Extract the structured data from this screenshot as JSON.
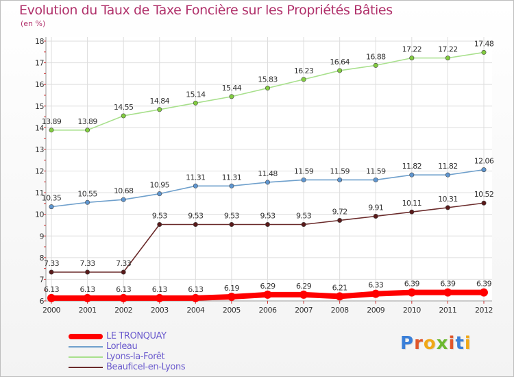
{
  "header": {
    "title": "Evolution du Taux de Taxe Foncière sur les Propriétés Bâties",
    "unit": "(en %)"
  },
  "logo": {
    "letters": [
      "P",
      "r",
      "o",
      "x",
      "i",
      "t",
      "i"
    ],
    "colors": [
      "#3a7fd8",
      "#e0562a",
      "#f0a818",
      "#6cb830",
      "#e0562a",
      "#3a7fd8",
      "#f0a818"
    ]
  },
  "chart_data": {
    "type": "line",
    "x": [
      2000,
      2001,
      2002,
      2003,
      2004,
      2005,
      2006,
      2007,
      2008,
      2009,
      2010,
      2011,
      2012
    ],
    "ylim": [
      6,
      18
    ],
    "yticks": [
      6,
      7,
      8,
      9,
      10,
      11,
      12,
      13,
      14,
      15,
      16,
      17,
      18
    ],
    "grid": true,
    "legend_position": "bottom-left",
    "series": [
      {
        "name": "LE TRONQUAY",
        "color": "#ff0000",
        "values": [
          6.13,
          6.13,
          6.13,
          6.13,
          6.13,
          6.19,
          6.29,
          6.29,
          6.21,
          6.33,
          6.39,
          6.39,
          6.39
        ],
        "labels": [
          "6.13",
          "6.13",
          "6.13",
          "6.13",
          "6.13",
          "6.19",
          "6.29",
          "6.29",
          "6.21",
          "6.33",
          "6.39",
          "6.39",
          "6.39"
        ]
      },
      {
        "name": "Lorleau",
        "color": "#6fa0cc",
        "marker": "#5f96d0",
        "values": [
          10.35,
          10.55,
          10.68,
          10.95,
          11.31,
          11.31,
          11.48,
          11.59,
          11.59,
          11.59,
          11.82,
          11.82,
          12.06
        ],
        "labels": [
          "10.35",
          "10.55",
          "10.68",
          "10.95",
          "11.31",
          "11.31",
          "11.48",
          "11.59",
          "11.59",
          "11.59",
          "11.82",
          "11.82",
          "12.06"
        ]
      },
      {
        "name": "Lyons-la-Forêt",
        "color": "#a8e08c",
        "marker": "#82cc40",
        "values": [
          13.89,
          13.89,
          14.55,
          14.84,
          15.14,
          15.44,
          15.83,
          16.23,
          16.64,
          16.88,
          17.22,
          17.22,
          17.48
        ],
        "labels": [
          "13.89",
          "13.89",
          "14.55",
          "14.84",
          "15.14",
          "15.44",
          "15.83",
          "16.23",
          "16.64",
          "16.88",
          "17.22",
          "17.22",
          "17.48"
        ]
      },
      {
        "name": "Beauficel-en-Lyons",
        "color": "#6a2a2a",
        "marker": "#5a1a1a",
        "values": [
          7.33,
          7.33,
          7.33,
          9.53,
          9.53,
          9.53,
          9.53,
          9.53,
          9.72,
          9.91,
          10.11,
          10.31,
          10.52
        ],
        "labels": [
          "7.33",
          "7.33",
          "7.33",
          "9.53",
          "9.53",
          "9.53",
          "9.53",
          "9.53",
          "9.72",
          "9.91",
          "10.11",
          "10.31",
          "10.52"
        ]
      }
    ]
  }
}
